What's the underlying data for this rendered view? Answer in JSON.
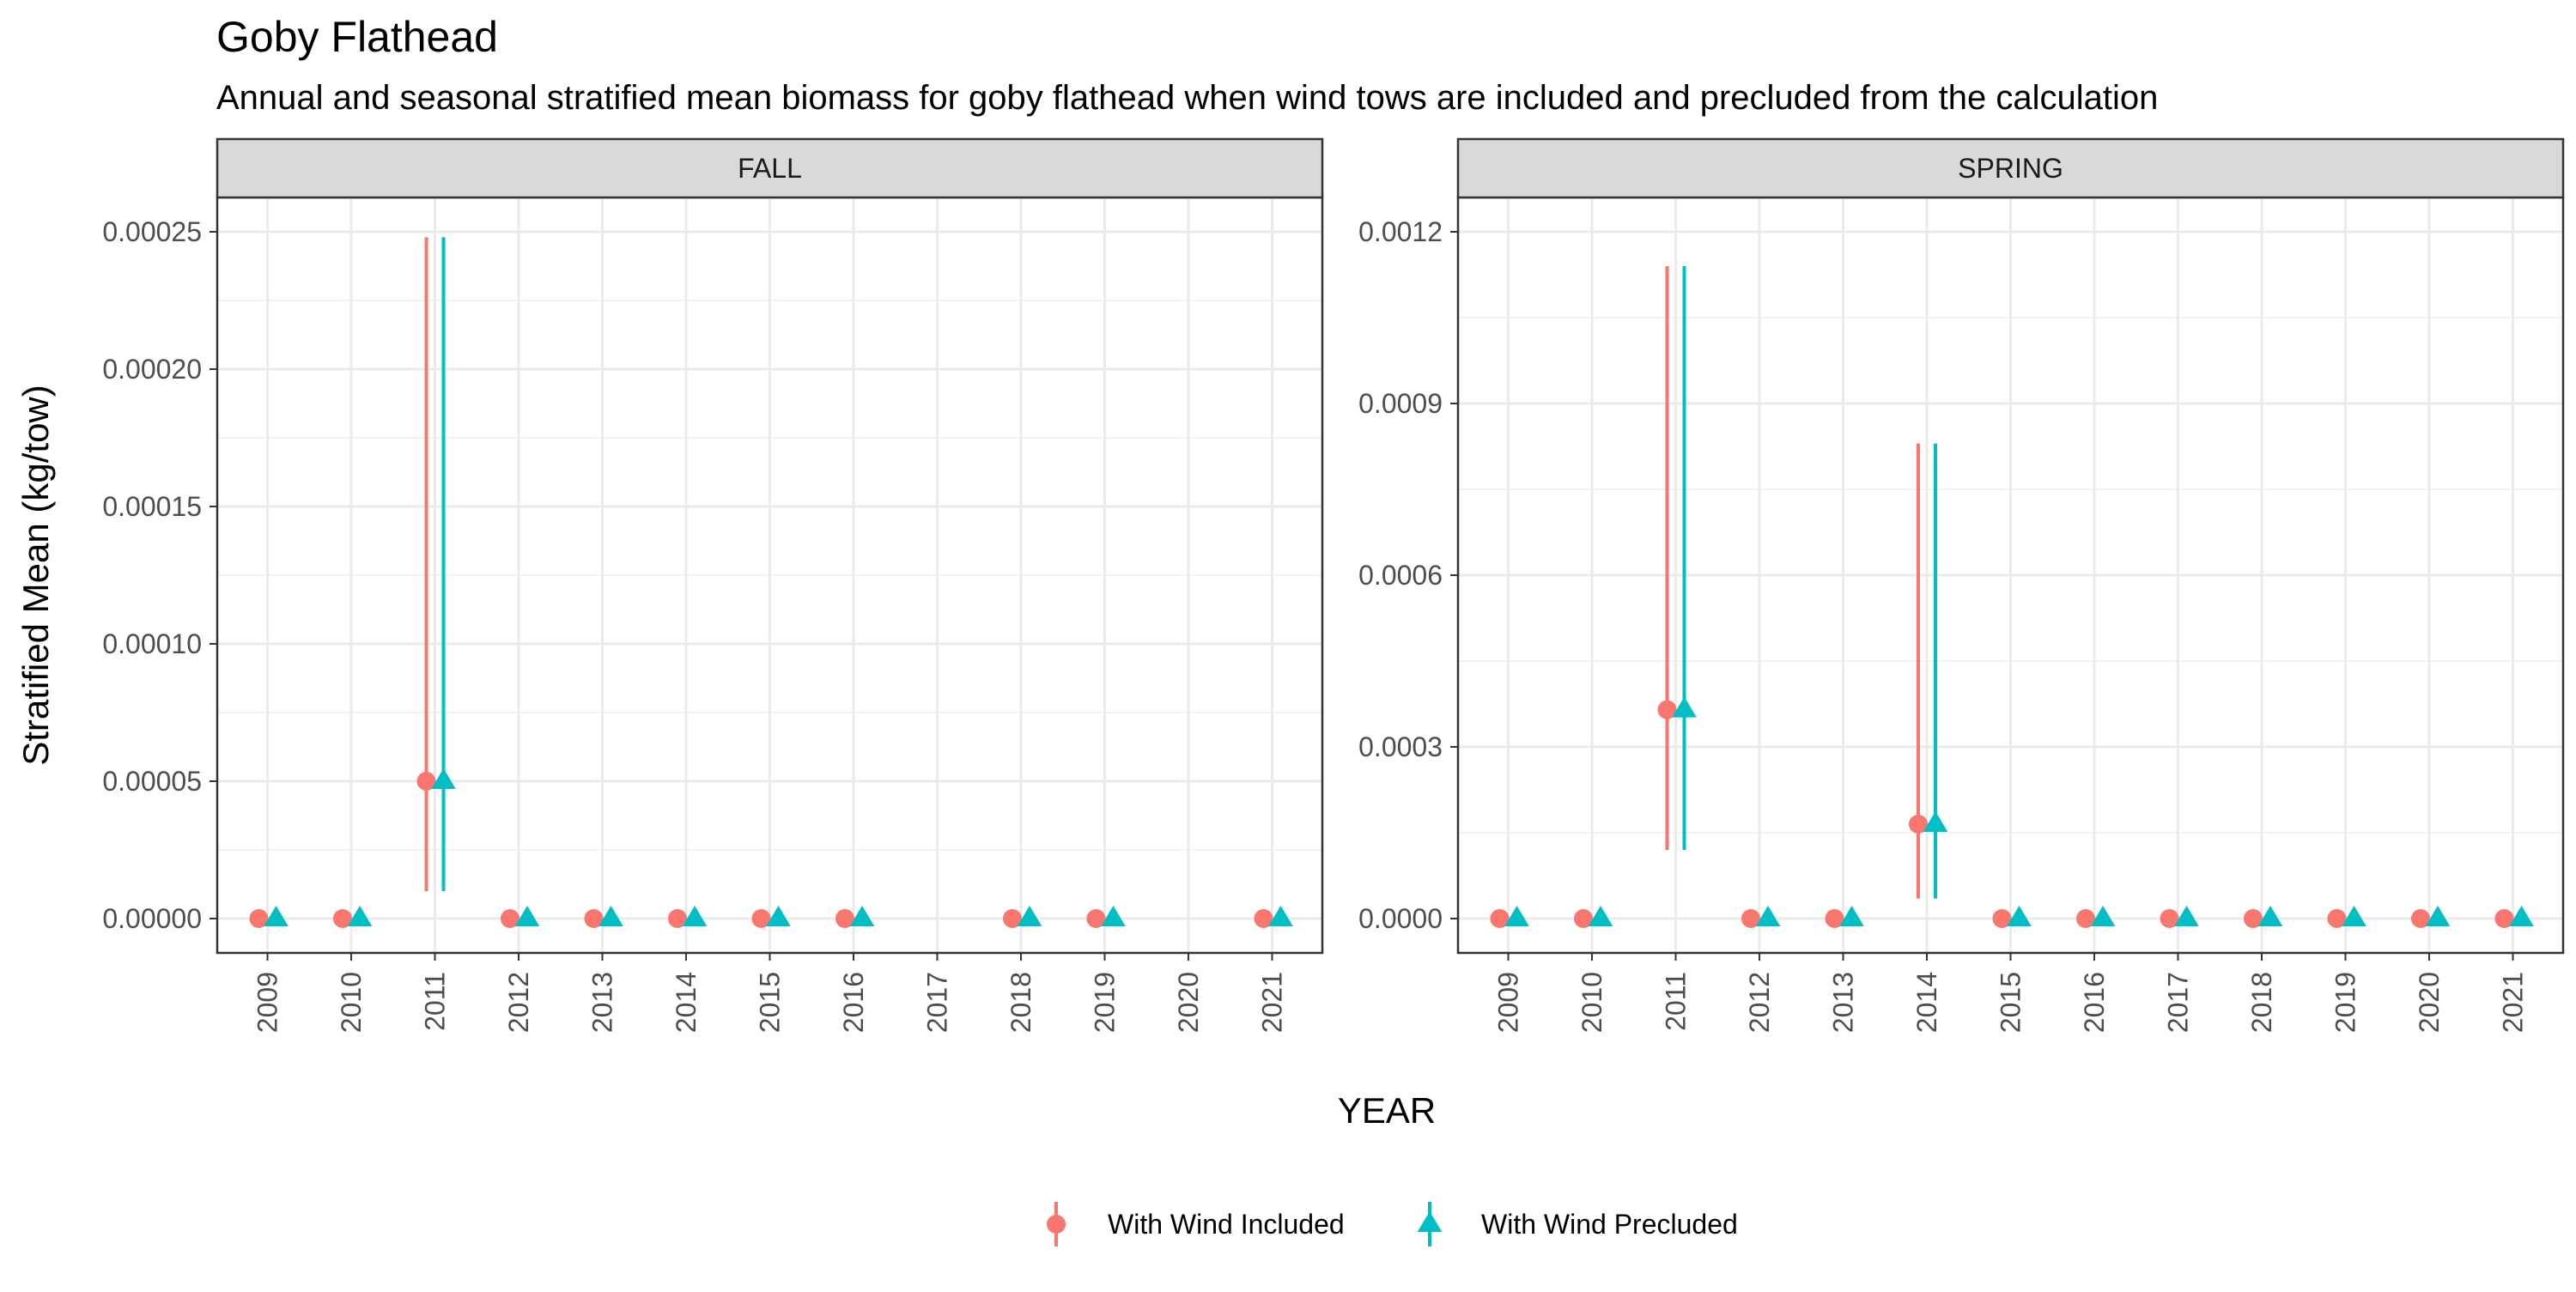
{
  "chart_data": {
    "type": "scatter",
    "title": "Goby Flathead",
    "subtitle": "Annual and seasonal stratified mean biomass for goby flathead when wind tows are included and precluded from the calculation",
    "xlabel": "YEAR",
    "ylabel": "Stratified Mean (kg/tow)",
    "grid": true,
    "legend_position": "bottom",
    "legend": [
      {
        "name": "With Wind Included",
        "color": "#F8766D",
        "shape": "circle"
      },
      {
        "name": "With Wind Precluded",
        "color": "#00BFC4",
        "shape": "triangle"
      }
    ],
    "panels": [
      {
        "name": "FALL",
        "categories": [
          "2009",
          "2010",
          "2011",
          "2012",
          "2013",
          "2014",
          "2015",
          "2016",
          "2017",
          "2018",
          "2019",
          "2020",
          "2021"
        ],
        "ylim": [
          -1.25e-05,
          0.0002625
        ],
        "y_ticks": [
          0,
          5e-05,
          0.0001,
          0.00015,
          0.0002,
          0.00025
        ],
        "y_tick_labels": [
          "0.00000",
          "0.00005",
          "0.00010",
          "0.00015",
          "0.00020",
          "0.00025"
        ],
        "series": [
          {
            "name": "With Wind Included",
            "points": [
              {
                "x": "2009",
                "y": 0
              },
              {
                "x": "2010",
                "y": 0
              },
              {
                "x": "2011",
                "y": 5e-05,
                "lower": 1e-05,
                "upper": 0.000248
              },
              {
                "x": "2012",
                "y": 0
              },
              {
                "x": "2013",
                "y": 0
              },
              {
                "x": "2014",
                "y": 0
              },
              {
                "x": "2015",
                "y": 0
              },
              {
                "x": "2016",
                "y": 0
              },
              {
                "x": "2018",
                "y": 0
              },
              {
                "x": "2019",
                "y": 0
              },
              {
                "x": "2021",
                "y": 0
              }
            ]
          },
          {
            "name": "With Wind Precluded",
            "points": [
              {
                "x": "2009",
                "y": 0
              },
              {
                "x": "2010",
                "y": 0
              },
              {
                "x": "2011",
                "y": 5e-05,
                "lower": 1e-05,
                "upper": 0.000248
              },
              {
                "x": "2012",
                "y": 0
              },
              {
                "x": "2013",
                "y": 0
              },
              {
                "x": "2014",
                "y": 0
              },
              {
                "x": "2015",
                "y": 0
              },
              {
                "x": "2016",
                "y": 0
              },
              {
                "x": "2018",
                "y": 0
              },
              {
                "x": "2019",
                "y": 0
              },
              {
                "x": "2021",
                "y": 0
              }
            ]
          }
        ]
      },
      {
        "name": "SPRING",
        "categories": [
          "2009",
          "2010",
          "2011",
          "2012",
          "2013",
          "2014",
          "2015",
          "2016",
          "2017",
          "2018",
          "2019",
          "2020",
          "2021"
        ],
        "ylim": [
          -6e-05,
          0.00126
        ],
        "y_ticks": [
          0,
          0.0003,
          0.0006,
          0.0009,
          0.0012
        ],
        "y_tick_labels": [
          "0.0000",
          "0.0003",
          "0.0006",
          "0.0009",
          "0.0012"
        ],
        "series": [
          {
            "name": "With Wind Included",
            "points": [
              {
                "x": "2009",
                "y": 0
              },
              {
                "x": "2010",
                "y": 0
              },
              {
                "x": "2011",
                "y": 0.000365,
                "lower": 0.00012,
                "upper": 0.00114
              },
              {
                "x": "2012",
                "y": 0
              },
              {
                "x": "2013",
                "y": 0
              },
              {
                "x": "2014",
                "y": 0.000165,
                "lower": 3.5e-05,
                "upper": 0.00083
              },
              {
                "x": "2015",
                "y": 0
              },
              {
                "x": "2016",
                "y": 0
              },
              {
                "x": "2017",
                "y": 0
              },
              {
                "x": "2018",
                "y": 0
              },
              {
                "x": "2019",
                "y": 0
              },
              {
                "x": "2020",
                "y": 0
              },
              {
                "x": "2021",
                "y": 0
              }
            ]
          },
          {
            "name": "With Wind Precluded",
            "points": [
              {
                "x": "2009",
                "y": 0
              },
              {
                "x": "2010",
                "y": 0
              },
              {
                "x": "2011",
                "y": 0.000365,
                "lower": 0.00012,
                "upper": 0.00114
              },
              {
                "x": "2012",
                "y": 0
              },
              {
                "x": "2013",
                "y": 0
              },
              {
                "x": "2014",
                "y": 0.000165,
                "lower": 3.5e-05,
                "upper": 0.00083
              },
              {
                "x": "2015",
                "y": 0
              },
              {
                "x": "2016",
                "y": 0
              },
              {
                "x": "2017",
                "y": 0
              },
              {
                "x": "2018",
                "y": 0
              },
              {
                "x": "2019",
                "y": 0
              },
              {
                "x": "2020",
                "y": 0
              },
              {
                "x": "2021",
                "y": 0
              }
            ]
          }
        ]
      }
    ]
  }
}
